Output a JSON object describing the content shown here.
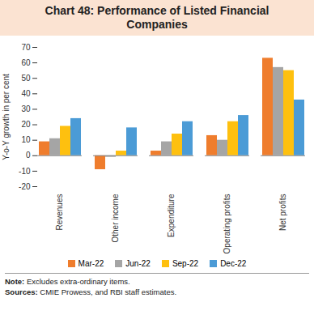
{
  "chart_data": {
    "type": "bar",
    "title": "Chart 48: Performance of Listed Financial Companies",
    "y_label": "Y-o-Y growth in per cent",
    "categories": [
      "Revenues",
      "Other income",
      "Expenditure",
      "Operating profits",
      "Net profits"
    ],
    "series": [
      {
        "name": "Mar-22",
        "color": "#ef7d2d",
        "values": [
          9,
          -9,
          3,
          13,
          63
        ]
      },
      {
        "name": "Jun-22",
        "color": "#a5a5a5",
        "values": [
          11,
          -1,
          9,
          10,
          57
        ]
      },
      {
        "name": "Sep-22",
        "color": "#fec00f",
        "values": [
          19,
          3,
          14,
          22,
          55
        ]
      },
      {
        "name": "Dec-22",
        "color": "#4b9bd6",
        "values": [
          24,
          18,
          22,
          26,
          36
        ]
      }
    ],
    "ylim": [
      -20,
      70
    ],
    "yticks": [
      -20,
      -10,
      0,
      10,
      20,
      30,
      40,
      50,
      60,
      70
    ],
    "grid": false,
    "legend": "bottom",
    "note": "Note: Excludes extra-ordinary items.",
    "sources": "Sources: CMIE Prowess, and RBI staff estimates."
  }
}
